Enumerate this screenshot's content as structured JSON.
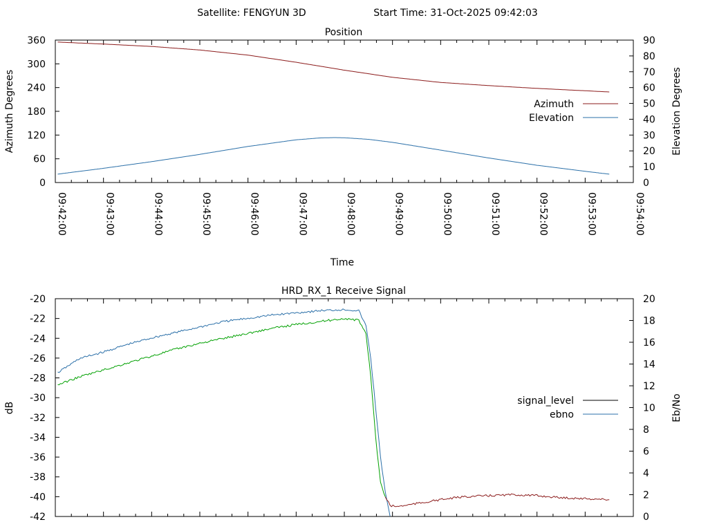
{
  "header": {
    "satellite_label": "Satellite: FENGYUN 3D",
    "start_time_label": "Start Time: 31-Oct-2025 09:42:03"
  },
  "chart_data": [
    {
      "type": "line",
      "title": "Position",
      "xlabel": "Time",
      "ylabel": "Azimuth Degrees",
      "y2label": "Elevation Degrees",
      "x_ticks": [
        "09:42:00",
        "09:43:00",
        "09:44:00",
        "09:45:00",
        "09:46:00",
        "09:47:00",
        "09:48:00",
        "09:49:00",
        "09:50:00",
        "09:51:00",
        "09:52:00",
        "09:53:00",
        "09:54:00"
      ],
      "xlim": [
        0,
        12
      ],
      "ylim": [
        0,
        360
      ],
      "y_ticks": [
        0,
        60,
        120,
        180,
        240,
        300,
        360
      ],
      "y2lim": [
        0,
        90
      ],
      "y2_ticks": [
        0,
        10,
        20,
        30,
        40,
        50,
        60,
        70,
        80,
        90
      ],
      "legend_position": "right",
      "series": [
        {
          "name": "Azimuth",
          "axis": "y",
          "color": "#8b1a1a",
          "x": [
            0.05,
            1,
            2,
            3,
            4,
            5,
            5.5,
            6,
            6.5,
            7,
            8,
            9,
            10,
            11,
            11.5
          ],
          "values": [
            355,
            350,
            344,
            335,
            322,
            304,
            294,
            284,
            275,
            266,
            253,
            245,
            238,
            232,
            229
          ]
        },
        {
          "name": "Elevation",
          "axis": "y2",
          "color": "#2a6fa8",
          "x": [
            0.05,
            1,
            2,
            3,
            4,
            5,
            5.5,
            5.8,
            6,
            6.5,
            7,
            8,
            9,
            10,
            11,
            11.5
          ],
          "values": [
            5.3,
            9,
            13.2,
            17.8,
            22.8,
            27,
            28.2,
            28.4,
            28.3,
            27.3,
            25.4,
            20.5,
            15.5,
            10.9,
            7.1,
            5.3
          ]
        }
      ]
    },
    {
      "type": "line",
      "title": "HRD_RX_1 Receive Signal",
      "xlabel": "",
      "ylabel": "dB",
      "y2label": "Eb/No",
      "xlim": [
        0,
        12
      ],
      "ylim": [
        -42,
        -20
      ],
      "y_ticks": [
        -42,
        -40,
        -38,
        -36,
        -34,
        -32,
        -30,
        -28,
        -26,
        -24,
        -22,
        -20
      ],
      "y2lim": [
        0,
        20
      ],
      "y2_ticks": [
        0,
        2,
        4,
        6,
        8,
        10,
        12,
        14,
        16,
        18,
        20
      ],
      "legend_position": "right",
      "series": [
        {
          "name": "signal_level",
          "axis": "y",
          "color": "#000000",
          "legend_only": true,
          "x": [],
          "values": []
        },
        {
          "name": "ebno",
          "axis": "y2",
          "color": "#2a6fa8",
          "x": [
            0.05,
            0.5,
            1,
            1.5,
            2,
            2.5,
            3,
            3.5,
            4,
            4.5,
            5,
            5.5,
            6,
            6.3,
            6.45,
            6.55,
            6.65,
            6.75,
            6.85,
            6.95
          ],
          "values": [
            13.2,
            14.5,
            15.1,
            15.8,
            16.4,
            16.9,
            17.4,
            17.9,
            18.2,
            18.5,
            18.7,
            18.9,
            19.0,
            18.9,
            17.5,
            14.5,
            10.0,
            5.5,
            2.2,
            0
          ]
        },
        {
          "name": "",
          "axis": "y",
          "color": "#00a000",
          "x": [
            0.05,
            0.5,
            1,
            1.5,
            2,
            2.5,
            3,
            3.5,
            4,
            4.5,
            5,
            5.5,
            6,
            6.3,
            6.45,
            6.55,
            6.65,
            6.75,
            6.85
          ],
          "values": [
            -28.7,
            -27.9,
            -27.2,
            -26.5,
            -25.8,
            -25.1,
            -24.5,
            -24.0,
            -23.5,
            -23.0,
            -22.6,
            -22.3,
            -22.0,
            -22.2,
            -23.5,
            -28.0,
            -34.0,
            -38.5,
            -40.0
          ]
        },
        {
          "name": "",
          "axis": "y",
          "color": "#8b1a1a",
          "x": [
            6.85,
            6.95,
            7.1,
            7.5,
            8,
            8.5,
            9,
            9.5,
            10,
            10.5,
            11,
            11.5
          ],
          "values": [
            -40.0,
            -40.9,
            -41.0,
            -40.7,
            -40.3,
            -40.0,
            -39.9,
            -39.8,
            -39.9,
            -40.1,
            -40.2,
            -40.3
          ]
        }
      ]
    }
  ]
}
